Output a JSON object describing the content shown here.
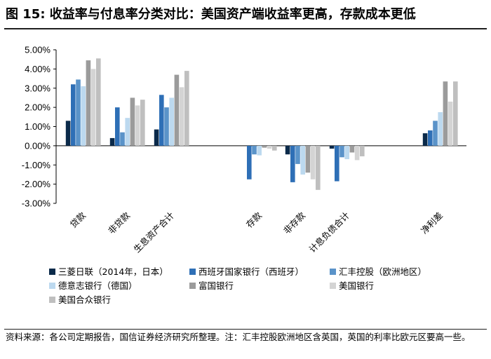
{
  "header": {
    "title": "图 15: 收益率与付息率分类对比：美国资产端收益率更高，存款成本更低"
  },
  "footer": {
    "source": "资料来源：各公司定期报告，国信证券经济研究所整理。注：汇丰控股欧洲地区含英国，英国的利率比欧元区要高一些。"
  },
  "chart_data": {
    "type": "bar",
    "title": "收益率与付息率分类对比：美国资产端收益率更高，存款成本更低",
    "xlabel": "",
    "ylabel": "",
    "ylim": [
      -3,
      5
    ],
    "yticks": [
      "5.00%",
      "4.00%",
      "3.00%",
      "2.00%",
      "1.00%",
      "0.00%",
      "-1.00%",
      "-2.00%",
      "-3.00%"
    ],
    "grid": false,
    "legend_position": "bottom",
    "categories": [
      "贷款",
      "非贷款",
      "生息资产合计",
      "存款",
      "非存款",
      "计息负债合计",
      "净利差"
    ],
    "series": [
      {
        "name": "三菱日联（2014年，日本）",
        "color": "#0b2a4a",
        "values": [
          1.3,
          0.4,
          0.85,
          null,
          -0.45,
          -0.15,
          0.65
        ]
      },
      {
        "name": "西班牙国家银行（西班牙）",
        "color": "#2e6fb6",
        "values": [
          3.2,
          2.0,
          2.65,
          -1.75,
          -1.9,
          -1.85,
          0.8
        ]
      },
      {
        "name": "汇丰控股（欧洲地区）",
        "color": "#5a93c9",
        "values": [
          3.45,
          0.7,
          2.0,
          -0.45,
          -0.95,
          -0.6,
          1.3
        ]
      },
      {
        "name": "德意志银行（德国）",
        "color": "#bcd9ef",
        "values": [
          3.1,
          1.45,
          2.5,
          -0.5,
          -1.5,
          -0.7,
          1.75
        ]
      },
      {
        "name": "富国银行",
        "color": "#9b9b9b",
        "values": [
          4.45,
          2.5,
          3.7,
          -0.1,
          -1.4,
          -0.35,
          3.35
        ]
      },
      {
        "name": "美国银行",
        "color": "#d4d4d4",
        "values": [
          4.0,
          2.1,
          3.05,
          -0.15,
          -1.75,
          -0.75,
          2.3
        ]
      },
      {
        "name": "美国合众银行",
        "color": "#bfbfbf",
        "values": [
          4.55,
          2.4,
          3.9,
          -0.25,
          -2.3,
          -0.55,
          3.35
        ]
      }
    ]
  }
}
